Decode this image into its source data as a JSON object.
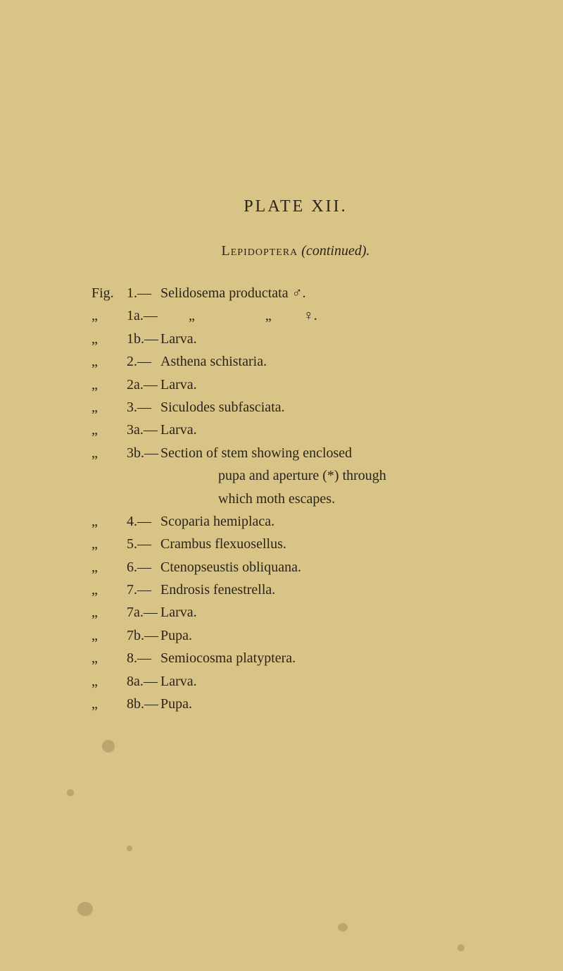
{
  "plate_title": "PLATE XII.",
  "subtitle_caps": "Lepidoptera",
  "subtitle_italic": "(continued).",
  "entries": [
    {
      "label": "Fig.",
      "num": "1.—",
      "text": "Selidosema productata ♂."
    },
    {
      "label": "„",
      "num": "1a.—",
      "text": "        „                    „         ♀."
    },
    {
      "label": "„",
      "num": "1b.—",
      "text": "Larva."
    },
    {
      "label": "„",
      "num": "2.—",
      "text": "Asthena schistaria."
    },
    {
      "label": "„",
      "num": "2a.—",
      "text": "Larva."
    },
    {
      "label": "„",
      "num": "3.—",
      "text": "Siculodes subfasciata."
    },
    {
      "label": "„",
      "num": "3a.—",
      "text": "Larva."
    },
    {
      "label": "„",
      "num": "3b.—",
      "text": "Section of stem showing enclosed"
    },
    {
      "label": "",
      "num": "",
      "text": "pupa and aperture (*) through",
      "cont": true
    },
    {
      "label": "",
      "num": "",
      "text": "which moth escapes.",
      "cont": true
    },
    {
      "label": "„",
      "num": "4.—",
      "text": "Scoparia hemiplaca."
    },
    {
      "label": "„",
      "num": "5.—",
      "text": "Crambus flexuosellus."
    },
    {
      "label": "„",
      "num": "6.—",
      "text": "Ctenopseustis obliquana."
    },
    {
      "label": "„",
      "num": "7.—",
      "text": "Endrosis fenestrella."
    },
    {
      "label": "„",
      "num": "7a.—",
      "text": "Larva."
    },
    {
      "label": "„",
      "num": "7b.—",
      "text": "Pupa."
    },
    {
      "label": "„",
      "num": "8.—",
      "text": "Semiocosma platyptera."
    },
    {
      "label": "„",
      "num": "8a.—",
      "text": "Larva."
    },
    {
      "label": "„",
      "num": "8b.—",
      "text": "Pupa."
    }
  ],
  "colors": {
    "background": "#d9c487",
    "text": "#2a2418"
  }
}
